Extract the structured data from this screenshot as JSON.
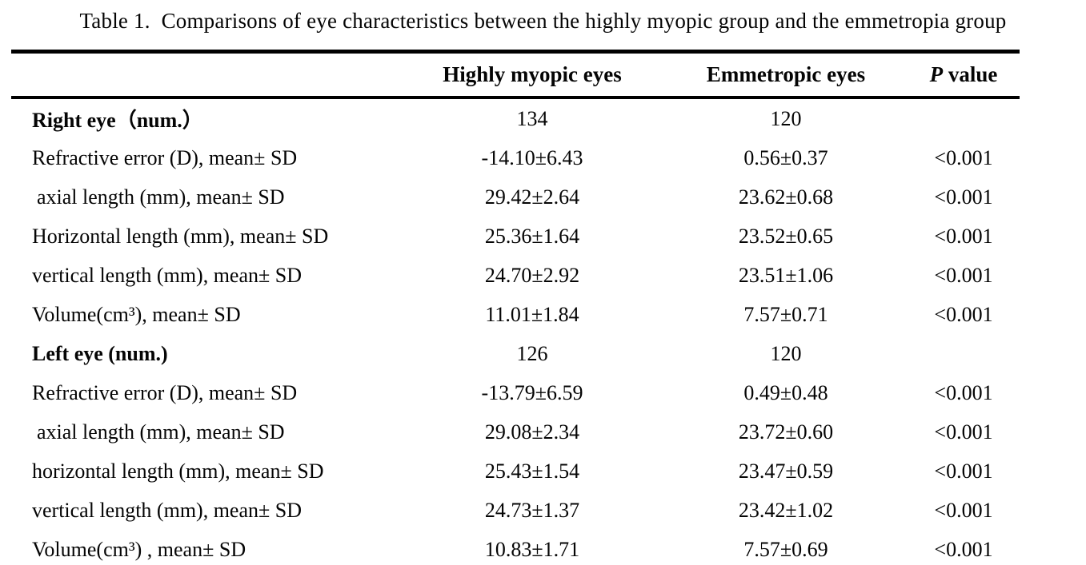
{
  "page": {
    "background_color": "#ffffff",
    "text_color": "#000000",
    "rule_color": "#000000"
  },
  "title": "Table 1.  Comparisons of eye characteristics between the highly myopic group and the emmetropia group",
  "table": {
    "header": {
      "label": "",
      "highly_myopic": "Highly myopic eyes",
      "emmetropic": "Emmetropic eyes",
      "p_italic": "P",
      "p_rest": " value"
    },
    "rows": [
      {
        "label": "Right eye（num.）",
        "bold": true,
        "indent": false,
        "highly": "134",
        "emmetropic": "120",
        "p": ""
      },
      {
        "label": "Refractive error (D), mean± SD",
        "bold": false,
        "indent": false,
        "highly": "-14.10±6.43",
        "emmetropic": "0.56±0.37",
        "p": "<0.001"
      },
      {
        "label": "axial length (mm), mean± SD",
        "bold": false,
        "indent": true,
        "highly": "29.42±2.64",
        "emmetropic": "23.62±0.68",
        "p": "<0.001"
      },
      {
        "label": "Horizontal length (mm), mean± SD",
        "bold": false,
        "indent": false,
        "highly": "25.36±1.64",
        "emmetropic": "23.52±0.65",
        "p": "<0.001"
      },
      {
        "label": "vertical length (mm), mean± SD",
        "bold": false,
        "indent": false,
        "highly": "24.70±2.92",
        "emmetropic": "23.51±1.06",
        "p": "<0.001"
      },
      {
        "label": "Volume(cm³), mean± SD",
        "bold": false,
        "indent": false,
        "highly": "11.01±1.84",
        "emmetropic": "7.57±0.71",
        "p": "<0.001"
      },
      {
        "label": "Left eye (num.)",
        "bold": true,
        "indent": false,
        "highly": "126",
        "emmetropic": "120",
        "p": ""
      },
      {
        "label": "Refractive error (D), mean± SD",
        "bold": false,
        "indent": false,
        "highly": "-13.79±6.59",
        "emmetropic": "0.49±0.48",
        "p": "<0.001"
      },
      {
        "label": "axial length (mm), mean± SD",
        "bold": false,
        "indent": true,
        "highly": "29.08±2.34",
        "emmetropic": "23.72±0.60",
        "p": "<0.001"
      },
      {
        "label": "horizontal length (mm), mean± SD",
        "bold": false,
        "indent": false,
        "highly": "25.43±1.54",
        "emmetropic": "23.47±0.59",
        "p": "<0.001"
      },
      {
        "label": "vertical length (mm), mean± SD",
        "bold": false,
        "indent": false,
        "highly": "24.73±1.37",
        "emmetropic": "23.42±1.02",
        "p": "<0.001"
      },
      {
        "label": "Volume(cm³) , mean± SD",
        "bold": false,
        "indent": false,
        "highly": "10.83±1.71",
        "emmetropic": "7.57±0.69",
        "p": "<0.001"
      }
    ]
  }
}
